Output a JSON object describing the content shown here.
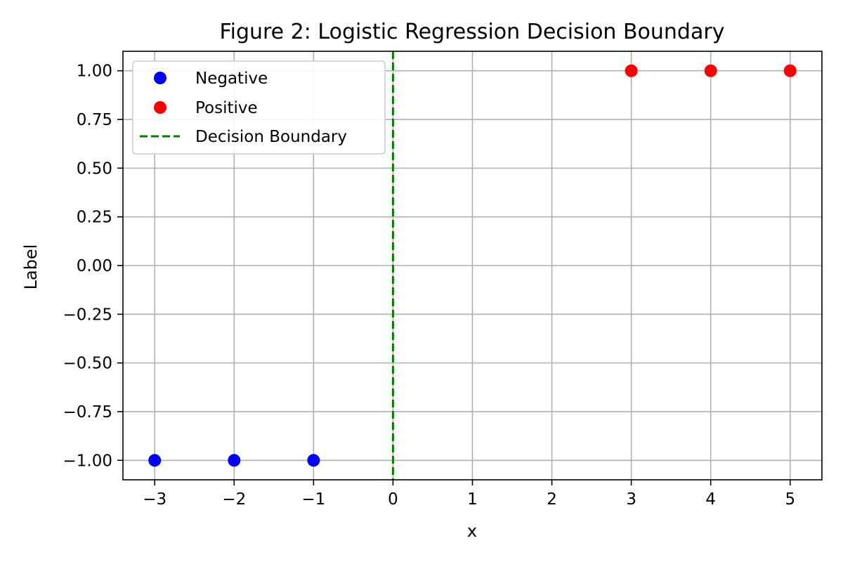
{
  "chart_data": {
    "type": "scatter",
    "title": "Figure 2: Logistic Regression Decision Boundary",
    "xlabel": "x",
    "ylabel": "Label",
    "xlim": [
      -3.4,
      5.4
    ],
    "ylim": [
      -1.1,
      1.1
    ],
    "x_ticks": [
      -3,
      -2,
      -1,
      0,
      1,
      2,
      3,
      4,
      5
    ],
    "x_tick_labels": [
      "−3",
      "−2",
      "−1",
      "0",
      "1",
      "2",
      "3",
      "4",
      "5"
    ],
    "y_ticks": [
      1.0,
      0.75,
      0.5,
      0.25,
      0.0,
      -0.25,
      -0.5,
      -0.75,
      -1.0
    ],
    "y_tick_labels": [
      "1.00",
      "0.75",
      "0.50",
      "0.25",
      "0.00",
      "−0.25",
      "−0.50",
      "−0.75",
      "−1.00"
    ],
    "grid": true,
    "legend_position": "top-left",
    "series": [
      {
        "name": "Negative",
        "color": "#0000ff",
        "marker": "circle",
        "points": [
          {
            "x": -3,
            "y": -1
          },
          {
            "x": -2,
            "y": -1
          },
          {
            "x": -1,
            "y": -1
          }
        ]
      },
      {
        "name": "Positive",
        "color": "#ff0000",
        "marker": "circle",
        "points": [
          {
            "x": 3,
            "y": 1
          },
          {
            "x": 4,
            "y": 1
          },
          {
            "x": 5,
            "y": 1
          }
        ]
      }
    ],
    "decision_boundary": {
      "name": "Decision Boundary",
      "x": 0,
      "color": "#008000",
      "linestyle": "dashed"
    }
  }
}
